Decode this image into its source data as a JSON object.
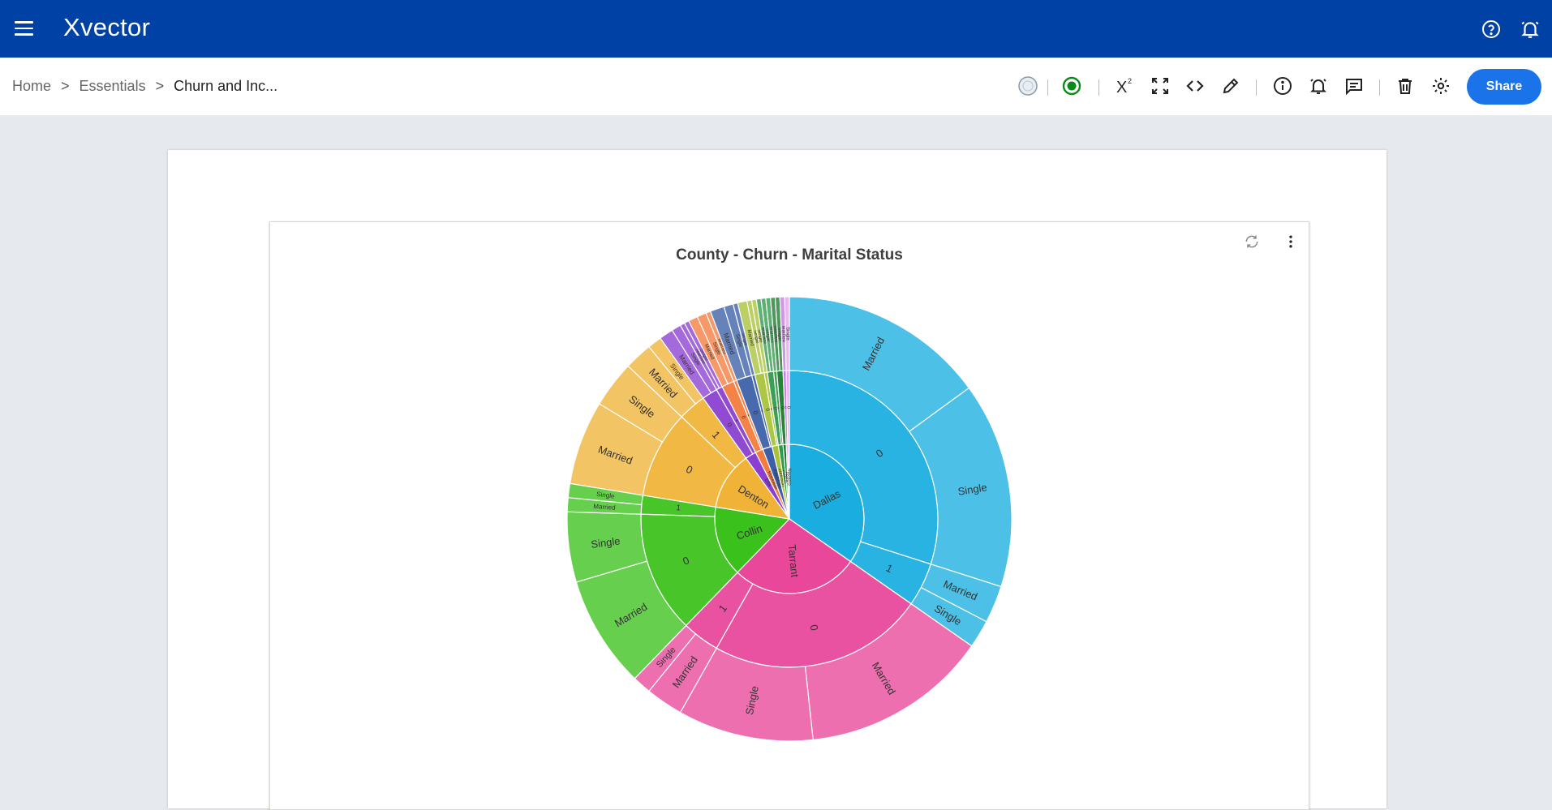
{
  "app": {
    "name": "Xvector"
  },
  "header": {
    "help_icon": "help-circle-icon",
    "notification_icon": "bell-icon"
  },
  "breadcrumb": {
    "home": "Home",
    "section": "Essentials",
    "current": "Churn and Inc...",
    "separator": ">"
  },
  "toolbar": {
    "icons": [
      "globe-icon",
      "status-dot-icon",
      "superscript-icon",
      "expand-icon",
      "code-icon",
      "edit-icon",
      "info-icon",
      "alert-bell-icon",
      "comment-icon",
      "delete-icon",
      "settings-icon"
    ],
    "share_label": "Share",
    "status_color": "#0a8a1a"
  },
  "chart_data": {
    "type": "sunburst",
    "title": "County - Churn - Marital Status",
    "levels": [
      "County",
      "Churn",
      "Marital Status"
    ],
    "start_angle": 0,
    "data": [
      {
        "name": "Dallas",
        "value": 102,
        "color": "#1aaee0",
        "children": [
          {
            "name": "0",
            "value": 88,
            "children": [
              {
                "name": "Married",
                "value": 44
              },
              {
                "name": "Single",
                "value": 44
              }
            ]
          },
          {
            "name": "1",
            "value": 14,
            "children": [
              {
                "name": "Married",
                "value": 8
              },
              {
                "name": "Single",
                "value": 6
              }
            ]
          }
        ]
      },
      {
        "name": "Tarrant",
        "value": 81,
        "color": "#e8479a",
        "children": [
          {
            "name": "0",
            "value": 69,
            "children": [
              {
                "name": "Married",
                "value": 40
              },
              {
                "name": "Single",
                "value": 29
              }
            ]
          },
          {
            "name": "1",
            "value": 12,
            "children": [
              {
                "name": "Married",
                "value": 8
              },
              {
                "name": "Single",
                "value": 4
              }
            ]
          }
        ]
      },
      {
        "name": "Collin",
        "value": 45,
        "color": "#3bc11b",
        "children": [
          {
            "name": "0",
            "value": 39,
            "children": [
              {
                "name": "Married",
                "value": 24
              },
              {
                "name": "Single",
                "value": 15
              }
            ]
          },
          {
            "name": "1",
            "value": 6,
            "children": [
              {
                "name": "Married",
                "value": 3
              },
              {
                "name": "Single",
                "value": 3
              }
            ]
          }
        ]
      },
      {
        "name": "Denton",
        "value": 37,
        "color": "#f0b338",
        "children": [
          {
            "name": "0",
            "value": 28,
            "children": [
              {
                "name": "Married",
                "value": 18
              },
              {
                "name": "Single",
                "value": 10
              }
            ]
          },
          {
            "name": "1",
            "value": 9,
            "children": [
              {
                "name": "Married",
                "value": 6
              },
              {
                "name": "Single",
                "value": 3
              }
            ]
          }
        ]
      },
      {
        "name": "Ellis",
        "value": 7,
        "color": "#8a3fd0",
        "children": [
          {
            "name": "0",
            "value": 5,
            "children": [
              {
                "name": "Married",
                "value": 3
              },
              {
                "name": "Single",
                "value": 2
              }
            ]
          },
          {
            "name": "1",
            "value": 2,
            "children": [
              {
                "name": "Married",
                "value": 1
              },
              {
                "name": "Single",
                "value": 1
              }
            ]
          }
        ]
      },
      {
        "name": "Rockwall",
        "value": 5,
        "color": "#f37b3c",
        "children": [
          {
            "name": "0",
            "value": 4,
            "children": [
              {
                "name": "Married",
                "value": 2
              },
              {
                "name": "Single",
                "value": 2
              }
            ]
          },
          {
            "name": "1",
            "value": 1,
            "children": [
              {
                "name": "Married",
                "value": 1
              }
            ]
          }
        ]
      },
      {
        "name": "Kaufman",
        "value": 6,
        "color": "#3b5fa8",
        "children": [
          {
            "name": "0",
            "value": 5,
            "children": [
              {
                "name": "Married",
                "value": 3
              },
              {
                "name": "Single",
                "value": 2
              }
            ]
          },
          {
            "name": "1",
            "value": 1,
            "children": [
              {
                "name": "Single",
                "value": 1
              }
            ]
          }
        ]
      },
      {
        "name": "Johnson",
        "value": 4,
        "color": "#a8c23a",
        "children": [
          {
            "name": "0",
            "value": 3,
            "children": [
              {
                "name": "Married",
                "value": 2
              },
              {
                "name": "Single",
                "value": 1
              }
            ]
          },
          {
            "name": "1",
            "value": 1,
            "children": [
              {
                "name": "Single",
                "value": 1
              }
            ]
          }
        ]
      },
      {
        "name": "Parker",
        "value": 3,
        "color": "#2e9a4a",
        "children": [
          {
            "name": "0",
            "value": 2,
            "children": [
              {
                "name": "Married",
                "value": 1
              },
              {
                "name": "Single",
                "value": 1
              }
            ]
          },
          {
            "name": "1",
            "value": 1,
            "children": [
              {
                "name": "Married",
                "value": 1
              }
            ]
          }
        ]
      },
      {
        "name": "Hunt",
        "value": 2,
        "color": "#1d7a2e",
        "children": [
          {
            "name": "0",
            "value": 2,
            "children": [
              {
                "name": "Married",
                "value": 1
              },
              {
                "name": "Single",
                "value": 1
              }
            ]
          }
        ]
      },
      {
        "name": "Wise",
        "value": 1,
        "color": "#c47ae0",
        "children": [
          {
            "name": "0",
            "value": 1,
            "children": [
              {
                "name": "Married",
                "value": 1
              }
            ]
          }
        ]
      },
      {
        "name": "Navarro",
        "value": 1,
        "color": "#e6a0f0",
        "children": [
          {
            "name": "0",
            "value": 1,
            "children": [
              {
                "name": "Single",
                "value": 1
              }
            ]
          }
        ]
      }
    ]
  }
}
